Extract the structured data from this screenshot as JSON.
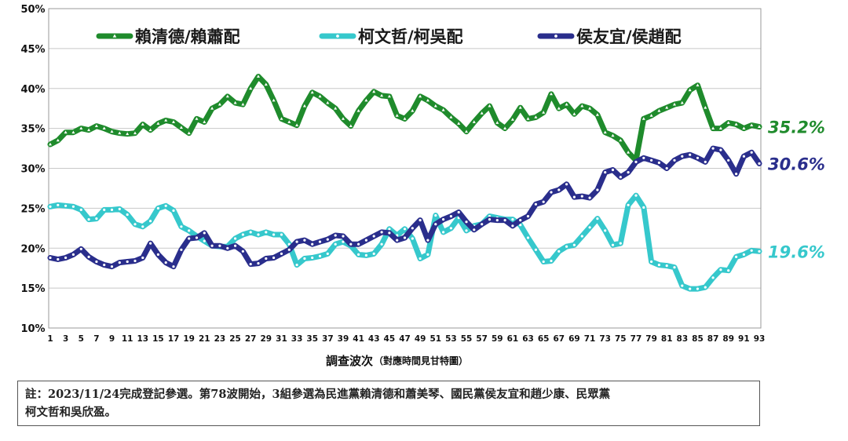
{
  "chart_data": {
    "type": "line",
    "xlabel": "調查波次",
    "xlabel_sub": "（對應時間見甘特圖）",
    "x": [
      1,
      2,
      3,
      4,
      5,
      6,
      7,
      8,
      9,
      10,
      11,
      12,
      13,
      14,
      15,
      16,
      17,
      18,
      19,
      20,
      21,
      22,
      23,
      24,
      25,
      26,
      27,
      28,
      29,
      30,
      31,
      32,
      33,
      34,
      35,
      36,
      37,
      38,
      39,
      40,
      41,
      42,
      43,
      44,
      45,
      46,
      47,
      48,
      49,
      50,
      51,
      52,
      53,
      54,
      55,
      56,
      57,
      58,
      59,
      60,
      61,
      62,
      63,
      64,
      65,
      66,
      67,
      68,
      69,
      70,
      71,
      72,
      73,
      74,
      75,
      76,
      77,
      78,
      79,
      80,
      81,
      82,
      83,
      84,
      85,
      86,
      87,
      88,
      89,
      90,
      91,
      92,
      93
    ],
    "x_tick_labels": [
      "1",
      "3",
      "5",
      "7",
      "9",
      "11",
      "13",
      "15",
      "17",
      "19",
      "21",
      "23",
      "25",
      "27",
      "29",
      "31",
      "33",
      "35",
      "37",
      "39",
      "41",
      "43",
      "45",
      "47",
      "49",
      "51",
      "53",
      "55",
      "57",
      "59",
      "61",
      "63",
      "65",
      "67",
      "69",
      "71",
      "73",
      "75",
      "77",
      "79",
      "81",
      "83",
      "85",
      "87",
      "89",
      "91",
      "93"
    ],
    "ylim": [
      10,
      50
    ],
    "y_ticks": [
      "10%",
      "15%",
      "20%",
      "25%",
      "30%",
      "35%",
      "40%",
      "45%",
      "50%"
    ],
    "grid": true,
    "legend_position": "top",
    "series": [
      {
        "name": "賴清德/賴蕭配",
        "color": "#1f8b2c",
        "marker": "triangle",
        "end_label": "35.2%",
        "values": [
          33.0,
          33.5,
          34.5,
          34.5,
          35.0,
          34.8,
          35.3,
          35.0,
          34.6,
          34.4,
          34.3,
          34.4,
          35.5,
          34.8,
          35.6,
          36.0,
          35.8,
          35.1,
          34.4,
          36.2,
          35.8,
          37.5,
          38.0,
          39.0,
          38.2,
          38.0,
          40.0,
          41.5,
          40.5,
          38.5,
          36.2,
          35.8,
          35.4,
          37.8,
          39.5,
          39.0,
          38.2,
          37.5,
          36.2,
          35.3,
          37.2,
          38.5,
          39.6,
          39.1,
          39.0,
          36.6,
          36.2,
          37.2,
          39.0,
          38.5,
          37.8,
          37.3,
          36.4,
          35.6,
          34.6,
          35.8,
          36.9,
          37.8,
          35.7,
          35.0,
          36.1,
          37.6,
          36.2,
          36.4,
          37.0,
          39.3,
          37.5,
          38.0,
          36.8,
          37.8,
          37.5,
          36.7,
          34.5,
          34.1,
          33.5,
          32.0,
          31.0,
          36.2,
          36.6,
          37.2,
          37.6,
          38.0,
          38.2,
          39.8,
          40.4,
          37.6,
          35.0,
          35.0,
          35.7,
          35.5,
          35.0,
          35.4,
          35.2
        ]
      },
      {
        "name": "柯文哲/柯吳配",
        "color": "#36c8cc",
        "marker": "circle",
        "end_label": "19.6%",
        "values": [
          25.2,
          25.4,
          25.3,
          25.2,
          24.8,
          23.6,
          23.7,
          24.8,
          24.8,
          24.9,
          24.2,
          23.0,
          22.7,
          23.4,
          25.0,
          25.3,
          24.7,
          22.7,
          22.2,
          21.5,
          20.9,
          20.3,
          20.2,
          20.2,
          21.2,
          21.7,
          22.0,
          21.7,
          22.0,
          21.7,
          21.7,
          20.5,
          17.9,
          18.7,
          18.8,
          19.0,
          19.3,
          20.5,
          20.8,
          20.3,
          19.2,
          19.1,
          19.3,
          20.5,
          22.4,
          21.6,
          22.4,
          21.2,
          18.7,
          19.2,
          24.1,
          22.0,
          22.5,
          23.8,
          22.2,
          22.8,
          23.0,
          24.0,
          23.8,
          23.6,
          23.6,
          22.9,
          21.3,
          19.8,
          18.3,
          18.4,
          19.6,
          20.2,
          20.4,
          21.5,
          22.6,
          23.7,
          22.2,
          20.4,
          20.6,
          25.4,
          26.6,
          25.1,
          18.3,
          17.9,
          17.8,
          17.6,
          15.3,
          14.9,
          14.9,
          15.1,
          16.3,
          17.3,
          17.2,
          18.9,
          19.2,
          19.7,
          19.6
        ]
      },
      {
        "name": "侯友宜/侯趙配",
        "color": "#2a2e8c",
        "marker": "circle",
        "end_label": "30.6%",
        "values": [
          18.8,
          18.6,
          18.8,
          19.2,
          19.9,
          18.9,
          18.3,
          17.9,
          17.7,
          18.2,
          18.3,
          18.4,
          18.8,
          20.6,
          19.2,
          18.2,
          17.7,
          19.8,
          21.2,
          21.3,
          21.9,
          20.3,
          20.3,
          20.0,
          20.3,
          19.6,
          18.0,
          18.1,
          18.7,
          18.8,
          19.3,
          19.8,
          20.8,
          21.0,
          20.5,
          20.8,
          21.1,
          21.6,
          21.5,
          20.5,
          20.5,
          21.0,
          21.5,
          22.0,
          21.9,
          21.0,
          21.3,
          22.5,
          23.5,
          21.0,
          23.0,
          23.6,
          24.0,
          24.5,
          23.3,
          22.3,
          23.0,
          23.6,
          23.5,
          23.5,
          22.8,
          23.5,
          24.0,
          25.5,
          25.8,
          27.0,
          27.3,
          28.0,
          26.4,
          26.5,
          26.3,
          27.3,
          29.5,
          29.8,
          28.9,
          29.5,
          30.8,
          31.3,
          31.0,
          30.7,
          30.0,
          31.0,
          31.5,
          31.7,
          31.3,
          30.8,
          32.5,
          32.3,
          31.0,
          29.3,
          31.5,
          32.0,
          30.6
        ]
      }
    ]
  },
  "note": {
    "line1": "註：2023/11/24完成登記參選。第78波開始，3組參選為民進黨賴清德和蕭美琴、國民黨侯友宜和趙少康、民眾黨",
    "line2": "柯文哲和吳欣盈。"
  }
}
